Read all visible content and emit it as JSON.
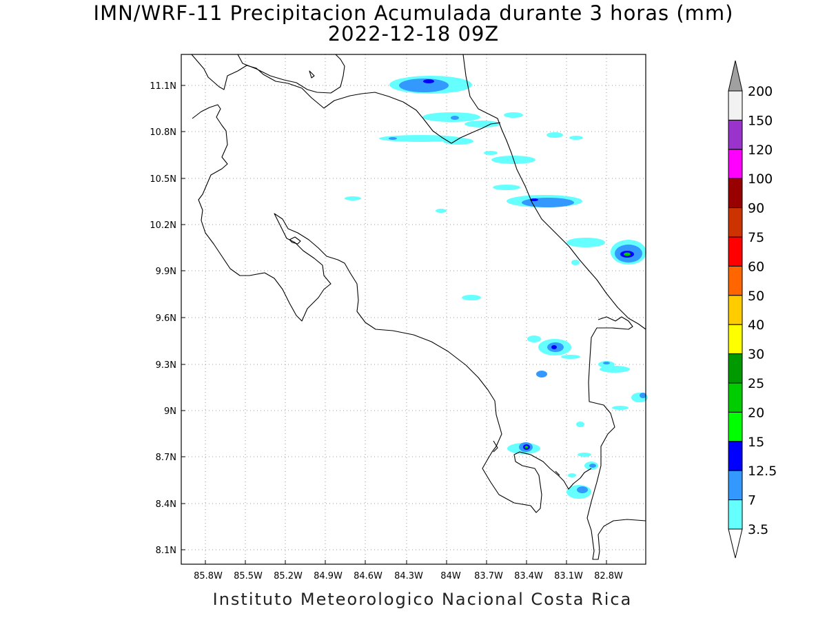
{
  "title_line1": "IMN/WRF-11 Precipitacion Acumulada durante 3 horas (mm)",
  "title_line2": "2022-12-18 09Z",
  "footer": "Instituto Meteorologico Nacional Costa Rica",
  "lon_ticks": [
    "85.8W",
    "85.5W",
    "85.2W",
    "84.9W",
    "84.6W",
    "84.3W",
    "84W",
    "83.7W",
    "83.4W",
    "83.1W",
    "82.8W"
  ],
  "lat_ticks": [
    "11.1N",
    "10.8N",
    "10.5N",
    "10.2N",
    "9.9N",
    "9.6N",
    "9.3N",
    "9N",
    "8.7N",
    "8.4N",
    "8.1N"
  ],
  "colorbar": {
    "labels": [
      "200",
      "150",
      "120",
      "100",
      "90",
      "75",
      "60",
      "50",
      "40",
      "30",
      "25",
      "20",
      "15",
      "12.5",
      "7",
      "3.5"
    ],
    "colors": [
      "#f2f2f2",
      "#9933cc",
      "#ff00ff",
      "#990000",
      "#cc3300",
      "#ff0000",
      "#ff6600",
      "#ffcc00",
      "#ffff00",
      "#009900",
      "#00cc00",
      "#00ff00",
      "#0000ff",
      "#3399ff",
      "#66ffff"
    ],
    "top_arrow_color": "#a0a0a0",
    "bottom_arrow_color": "#ffffff"
  }
}
